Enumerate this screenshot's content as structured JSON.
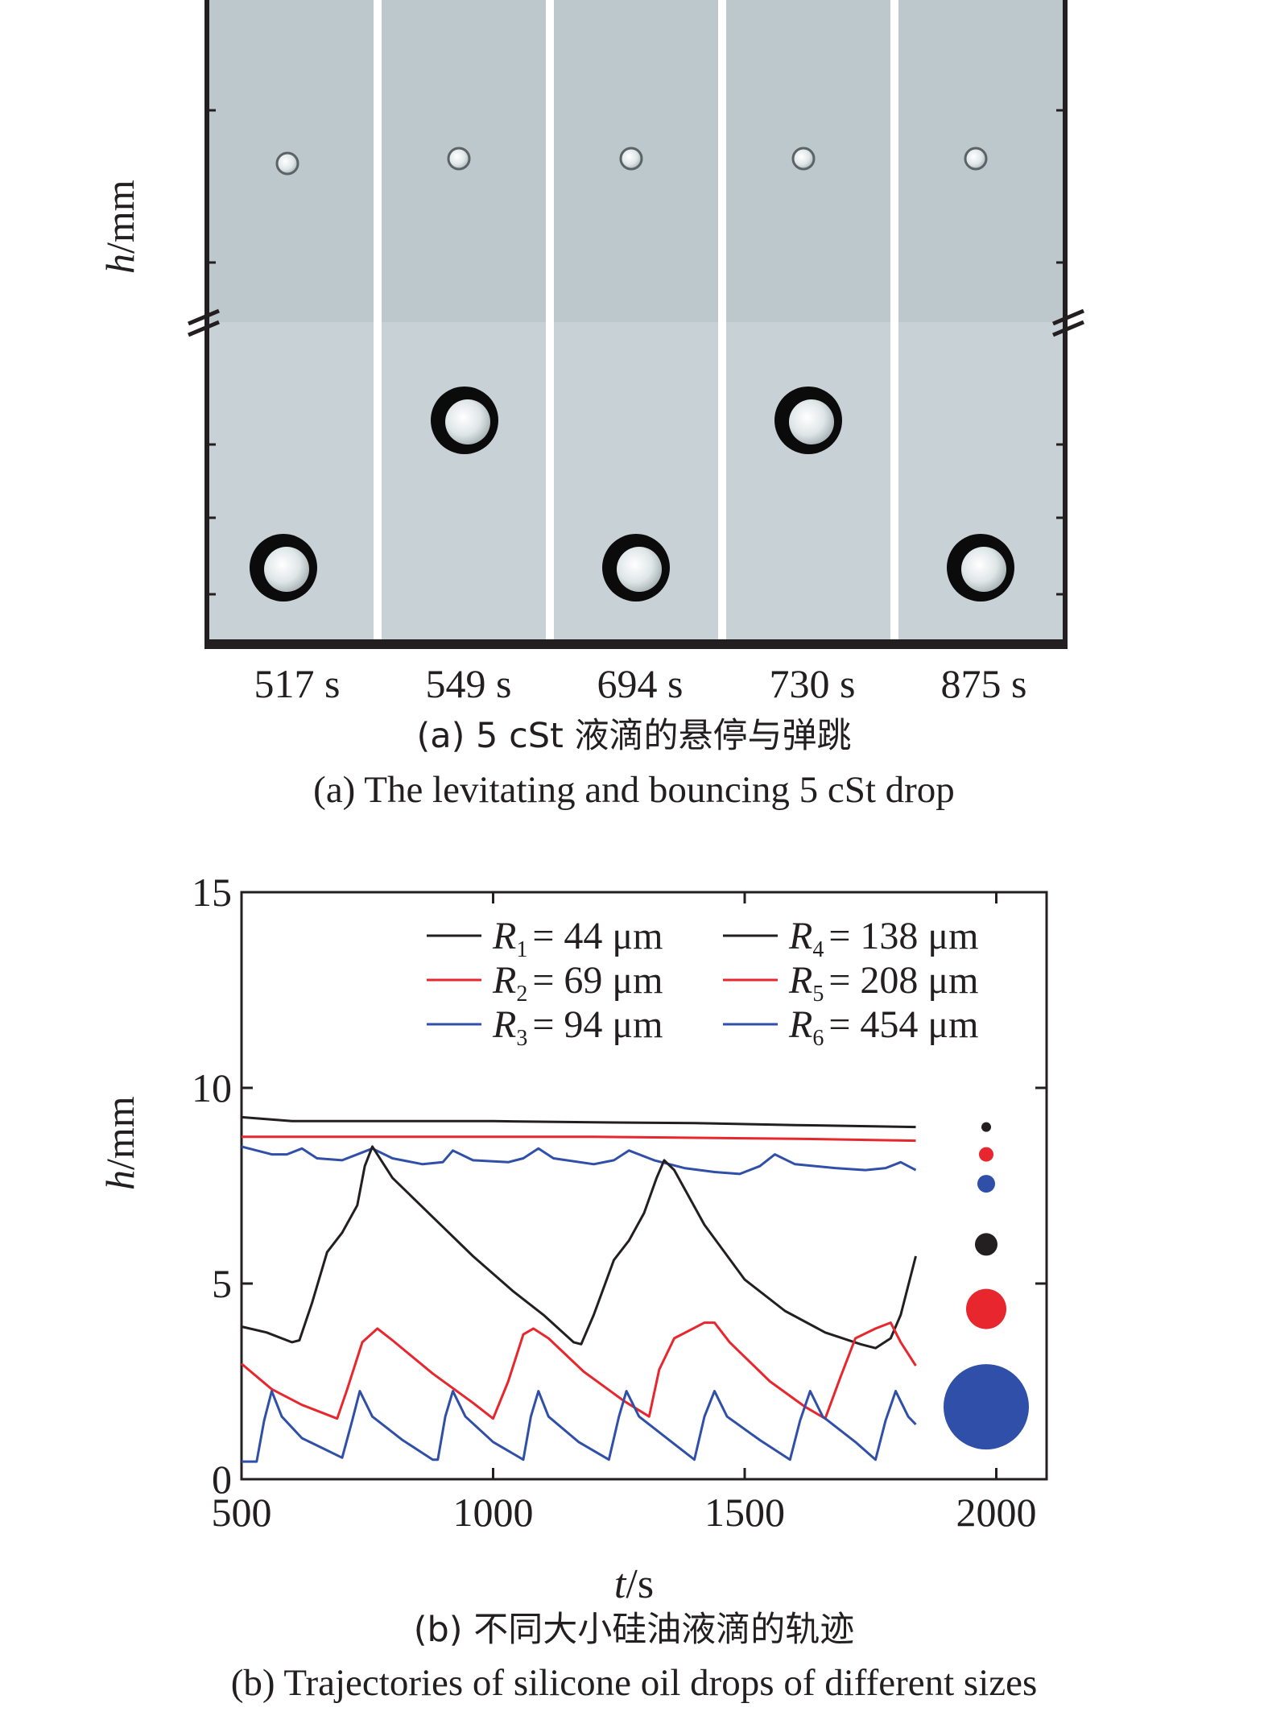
{
  "panel_a": {
    "ylabel_italic": "h",
    "ylabel_unit": "/mm",
    "frame_times": [
      "517 s",
      "549 s",
      "694 s",
      "730 s",
      "875 s"
    ],
    "caption_cn": "(a) 5 cSt 液滴的悬停与弹跳",
    "caption_en": "(a) The levitating and bouncing 5 cSt drop"
  },
  "panel_b": {
    "caption_cn": "(b) 不同大小硅油液滴的轨迹",
    "caption_en": "(b) Trajectories of silicone oil drops of different sizes"
  },
  "colors": {
    "black": "#231f20",
    "red": "#e8262d",
    "blue": "#2f4fa8"
  },
  "chart_data": {
    "type": "line",
    "xlabel_italic": "t",
    "xlabel_unit": "/s",
    "ylabel_italic": "h",
    "ylabel_unit": "/mm",
    "xlim": [
      500,
      2100
    ],
    "ylim": [
      0,
      15
    ],
    "xticks": [
      500,
      1000,
      1500,
      2000
    ],
    "yticks": [
      0,
      5,
      10,
      15
    ],
    "legend_position": "top-right",
    "series": [
      {
        "name": "R1 = 44 μm",
        "sub": "1",
        "value_label": "= 44 μm",
        "color": "#231f20",
        "points": [
          [
            500,
            9.25
          ],
          [
            600,
            9.15
          ],
          [
            800,
            9.15
          ],
          [
            1000,
            9.15
          ],
          [
            1200,
            9.12
          ],
          [
            1400,
            9.1
          ],
          [
            1600,
            9.05
          ],
          [
            1840,
            9.0
          ]
        ]
      },
      {
        "name": "R2 = 69 μm",
        "sub": "2",
        "value_label": "= 69 μm",
        "color": "#e8262d",
        "points": [
          [
            500,
            8.75
          ],
          [
            800,
            8.75
          ],
          [
            1200,
            8.75
          ],
          [
            1600,
            8.7
          ],
          [
            1840,
            8.65
          ]
        ]
      },
      {
        "name": "R3 = 94 μm",
        "sub": "3",
        "value_label": "= 94 μm",
        "color": "#2f4fa8",
        "points": [
          [
            500,
            8.5
          ],
          [
            560,
            8.3
          ],
          [
            590,
            8.3
          ],
          [
            620,
            8.45
          ],
          [
            650,
            8.2
          ],
          [
            700,
            8.15
          ],
          [
            740,
            8.35
          ],
          [
            760,
            8.45
          ],
          [
            800,
            8.2
          ],
          [
            860,
            8.05
          ],
          [
            900,
            8.1
          ],
          [
            920,
            8.4
          ],
          [
            960,
            8.15
          ],
          [
            1030,
            8.1
          ],
          [
            1060,
            8.2
          ],
          [
            1090,
            8.45
          ],
          [
            1120,
            8.2
          ],
          [
            1200,
            8.05
          ],
          [
            1240,
            8.15
          ],
          [
            1270,
            8.4
          ],
          [
            1320,
            8.15
          ],
          [
            1380,
            7.95
          ],
          [
            1440,
            7.85
          ],
          [
            1490,
            7.8
          ],
          [
            1530,
            8.0
          ],
          [
            1560,
            8.3
          ],
          [
            1600,
            8.05
          ],
          [
            1680,
            7.95
          ],
          [
            1740,
            7.9
          ],
          [
            1780,
            7.95
          ],
          [
            1810,
            8.1
          ],
          [
            1840,
            7.9
          ]
        ]
      },
      {
        "name": "R4 = 138 μm",
        "sub": "4",
        "value_label": "= 138 μm",
        "color": "#231f20",
        "points": [
          [
            500,
            3.9
          ],
          [
            550,
            3.75
          ],
          [
            600,
            3.5
          ],
          [
            615,
            3.55
          ],
          [
            640,
            4.5
          ],
          [
            670,
            5.8
          ],
          [
            700,
            6.3
          ],
          [
            730,
            7.0
          ],
          [
            745,
            8.0
          ],
          [
            760,
            8.5
          ],
          [
            800,
            7.7
          ],
          [
            880,
            6.7
          ],
          [
            960,
            5.7
          ],
          [
            1040,
            4.8
          ],
          [
            1100,
            4.2
          ],
          [
            1160,
            3.5
          ],
          [
            1175,
            3.45
          ],
          [
            1200,
            4.2
          ],
          [
            1240,
            5.6
          ],
          [
            1270,
            6.1
          ],
          [
            1300,
            6.8
          ],
          [
            1325,
            7.7
          ],
          [
            1340,
            8.15
          ],
          [
            1360,
            7.9
          ],
          [
            1420,
            6.5
          ],
          [
            1500,
            5.1
          ],
          [
            1580,
            4.3
          ],
          [
            1660,
            3.75
          ],
          [
            1730,
            3.45
          ],
          [
            1760,
            3.35
          ],
          [
            1790,
            3.6
          ],
          [
            1810,
            4.2
          ],
          [
            1840,
            5.7
          ]
        ]
      },
      {
        "name": "R5 = 208 μm",
        "sub": "5",
        "value_label": "= 208 μm",
        "color": "#e8262d",
        "points": [
          [
            500,
            2.95
          ],
          [
            560,
            2.3
          ],
          [
            620,
            1.9
          ],
          [
            690,
            1.55
          ],
          [
            710,
            2.3
          ],
          [
            740,
            3.5
          ],
          [
            770,
            3.85
          ],
          [
            800,
            3.55
          ],
          [
            880,
            2.7
          ],
          [
            960,
            1.95
          ],
          [
            1000,
            1.55
          ],
          [
            1030,
            2.5
          ],
          [
            1060,
            3.7
          ],
          [
            1080,
            3.85
          ],
          [
            1110,
            3.6
          ],
          [
            1180,
            2.75
          ],
          [
            1260,
            2.0
          ],
          [
            1310,
            1.6
          ],
          [
            1330,
            2.8
          ],
          [
            1360,
            3.6
          ],
          [
            1420,
            4.0
          ],
          [
            1440,
            4.0
          ],
          [
            1470,
            3.5
          ],
          [
            1550,
            2.5
          ],
          [
            1620,
            1.85
          ],
          [
            1660,
            1.55
          ],
          [
            1690,
            2.6
          ],
          [
            1720,
            3.6
          ],
          [
            1760,
            3.85
          ],
          [
            1790,
            4.0
          ],
          [
            1810,
            3.5
          ],
          [
            1840,
            2.9
          ]
        ]
      },
      {
        "name": "R6 = 454 μm",
        "sub": "6",
        "value_label": "= 454 μm",
        "color": "#2f4fa8",
        "points": [
          [
            500,
            0.45
          ],
          [
            530,
            0.45
          ],
          [
            545,
            1.5
          ],
          [
            560,
            2.25
          ],
          [
            580,
            1.6
          ],
          [
            620,
            1.05
          ],
          [
            660,
            0.8
          ],
          [
            700,
            0.55
          ],
          [
            720,
            1.5
          ],
          [
            735,
            2.25
          ],
          [
            760,
            1.6
          ],
          [
            820,
            1.0
          ],
          [
            880,
            0.5
          ],
          [
            890,
            0.5
          ],
          [
            905,
            1.6
          ],
          [
            920,
            2.25
          ],
          [
            945,
            1.6
          ],
          [
            1000,
            0.95
          ],
          [
            1060,
            0.5
          ],
          [
            1075,
            1.6
          ],
          [
            1090,
            2.25
          ],
          [
            1110,
            1.6
          ],
          [
            1170,
            0.95
          ],
          [
            1230,
            0.5
          ],
          [
            1250,
            1.6
          ],
          [
            1265,
            2.25
          ],
          [
            1290,
            1.6
          ],
          [
            1350,
            1.0
          ],
          [
            1400,
            0.5
          ],
          [
            1420,
            1.6
          ],
          [
            1440,
            2.25
          ],
          [
            1465,
            1.6
          ],
          [
            1530,
            1.0
          ],
          [
            1590,
            0.5
          ],
          [
            1610,
            1.5
          ],
          [
            1630,
            2.25
          ],
          [
            1655,
            1.6
          ],
          [
            1720,
            0.95
          ],
          [
            1760,
            0.5
          ],
          [
            1780,
            1.5
          ],
          [
            1800,
            2.25
          ],
          [
            1825,
            1.6
          ],
          [
            1840,
            1.4
          ]
        ]
      }
    ],
    "drop_markers": [
      {
        "color": "#231f20",
        "y": 9.0,
        "size": 6
      },
      {
        "color": "#e8262d",
        "y": 8.3,
        "size": 9
      },
      {
        "color": "#2f4fa8",
        "y": 7.55,
        "size": 11
      },
      {
        "color": "#231f20",
        "y": 6.0,
        "size": 14
      },
      {
        "color": "#e8262d",
        "y": 4.35,
        "size": 25
      },
      {
        "color": "#2f4fa8",
        "y": 1.85,
        "size": 53
      }
    ]
  }
}
